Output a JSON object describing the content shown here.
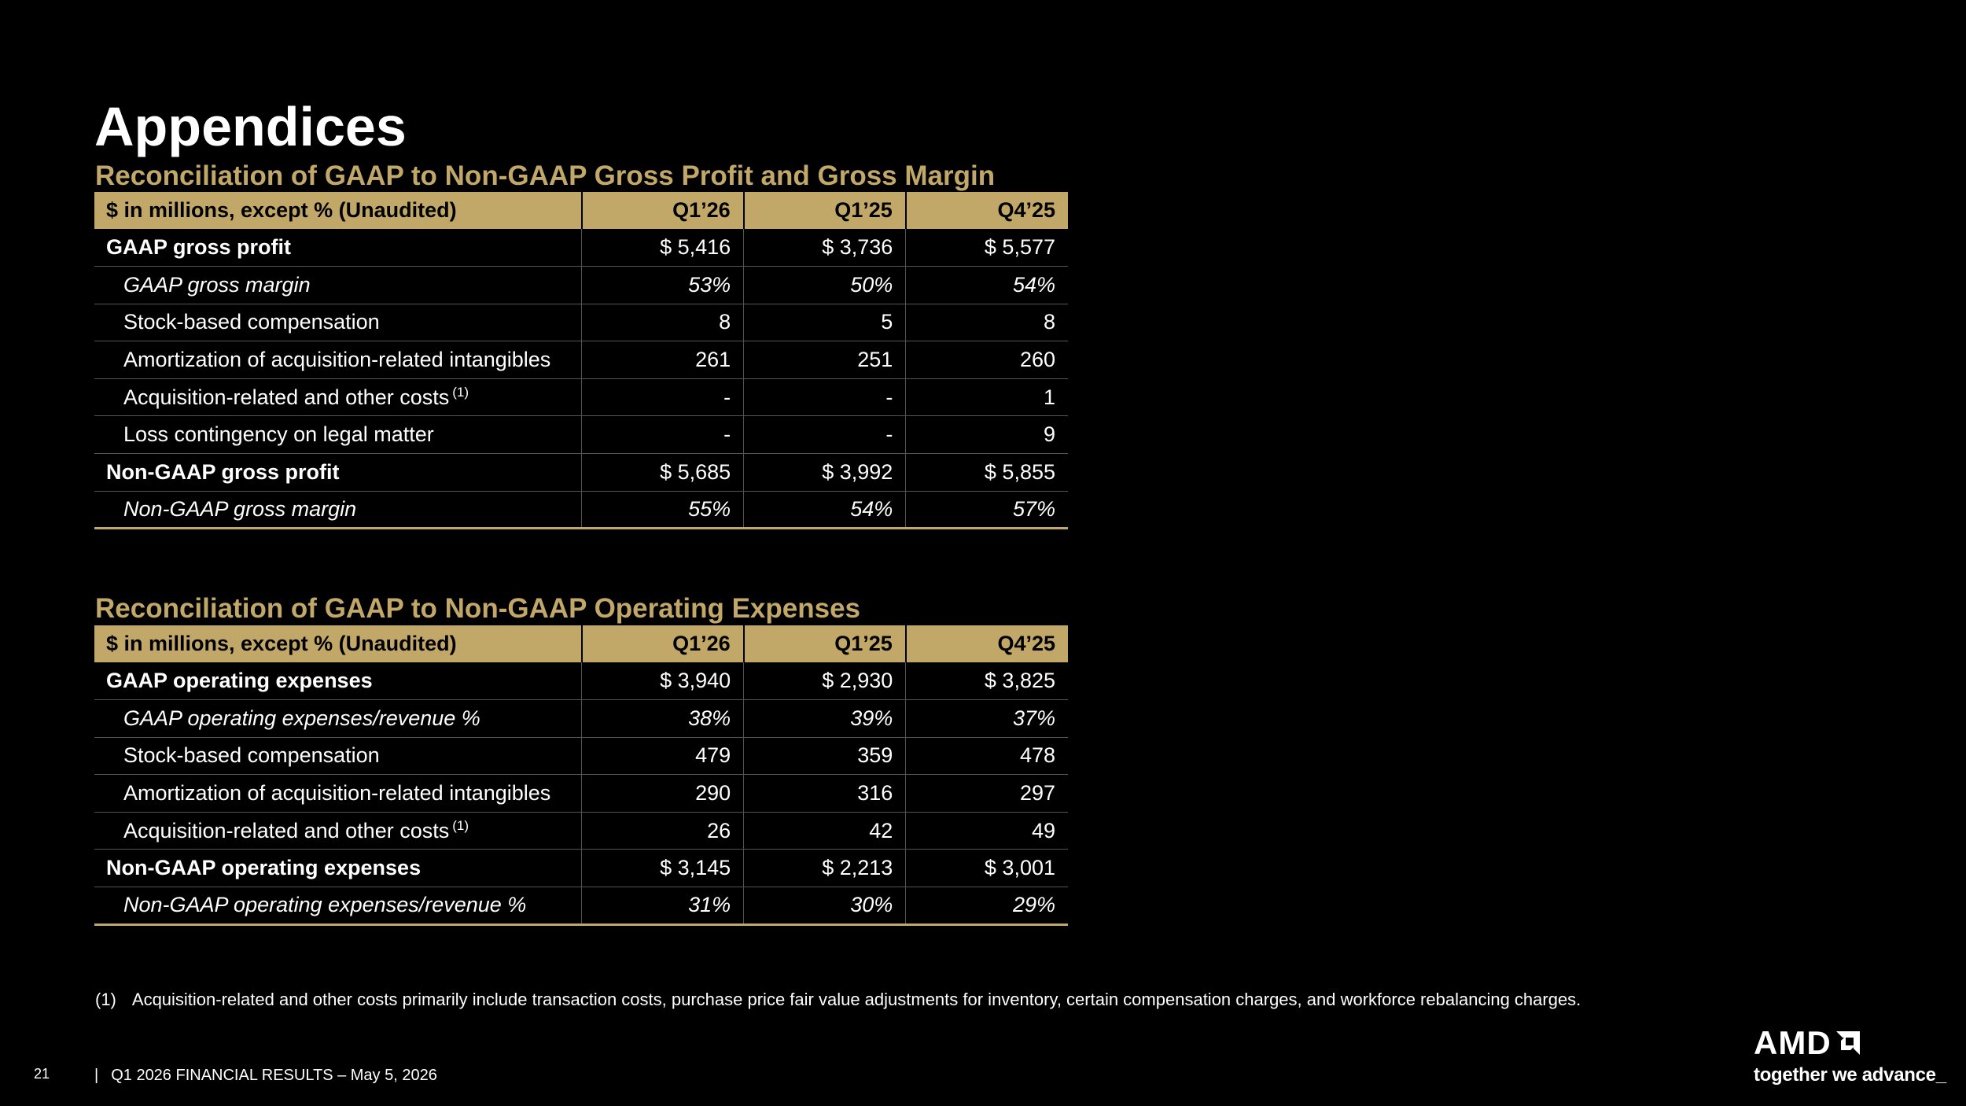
{
  "page": {
    "title": "Appendices",
    "footnote_number": "(1)",
    "footnote_text": "Acquisition-related and other costs primarily include transaction costs, purchase price fair value adjustments for inventory, certain compensation charges, and workforce rebalancing charges.",
    "page_number": "21",
    "footer_separator": "|",
    "footer_text": "Q1 2026 FINANCIAL RESULTS – May 5, 2026",
    "logo_text": "AMD",
    "tagline": "together we advance_"
  },
  "tables": {
    "gross": {
      "section_title": "Reconciliation of GAAP to Non-GAAP Gross Profit and Gross Margin",
      "headers": [
        "$ in millions, except % (Unaudited)",
        "Q1’26",
        "Q1’25",
        "Q4’25"
      ],
      "rows": [
        {
          "label": "GAAP gross profit",
          "values": [
            "$ 5,416",
            "$ 3,736",
            "$ 5,577"
          ]
        },
        {
          "label": "GAAP gross margin",
          "values": [
            "53%",
            "50%",
            "54%"
          ]
        },
        {
          "label": "Stock-based compensation",
          "values": [
            "8",
            "5",
            "8"
          ]
        },
        {
          "label": "Amortization of acquisition-related intangibles",
          "values": [
            "261",
            "251",
            "260"
          ]
        },
        {
          "label": "Acquisition-related and other costs",
          "footnote": "(1)",
          "values": [
            "-",
            "-",
            "1"
          ]
        },
        {
          "label": "Loss contingency on legal matter",
          "values": [
            "-",
            "-",
            "9"
          ]
        },
        {
          "label": "Non-GAAP gross profit",
          "values": [
            "$ 5,685",
            "$ 3,992",
            "$ 5,855"
          ]
        },
        {
          "label": "Non-GAAP gross margin",
          "values": [
            "55%",
            "54%",
            "57%"
          ]
        }
      ]
    },
    "opex": {
      "section_title": "Reconciliation of GAAP to Non-GAAP Operating Expenses",
      "headers": [
        "$ in millions, except % (Unaudited)",
        "Q1’26",
        "Q1’25",
        "Q4’25"
      ],
      "rows": [
        {
          "label": "GAAP operating expenses",
          "values": [
            "$ 3,940",
            "$ 2,930",
            "$ 3,825"
          ]
        },
        {
          "label": "GAAP operating expenses/revenue %",
          "values": [
            "38%",
            "39%",
            "37%"
          ]
        },
        {
          "label": "Stock-based compensation",
          "values": [
            "479",
            "359",
            "478"
          ]
        },
        {
          "label": "Amortization of acquisition-related intangibles",
          "values": [
            "290",
            "316",
            "297"
          ]
        },
        {
          "label": "Acquisition-related and other costs",
          "footnote": "(1)",
          "values": [
            "26",
            "42",
            "49"
          ]
        },
        {
          "label": "Non-GAAP operating expenses",
          "values": [
            "$ 3,145",
            "$ 2,213",
            "$ 3,001"
          ]
        },
        {
          "label": "Non-GAAP operating expenses/revenue %",
          "values": [
            "31%",
            "30%",
            "29%"
          ]
        }
      ]
    }
  }
}
